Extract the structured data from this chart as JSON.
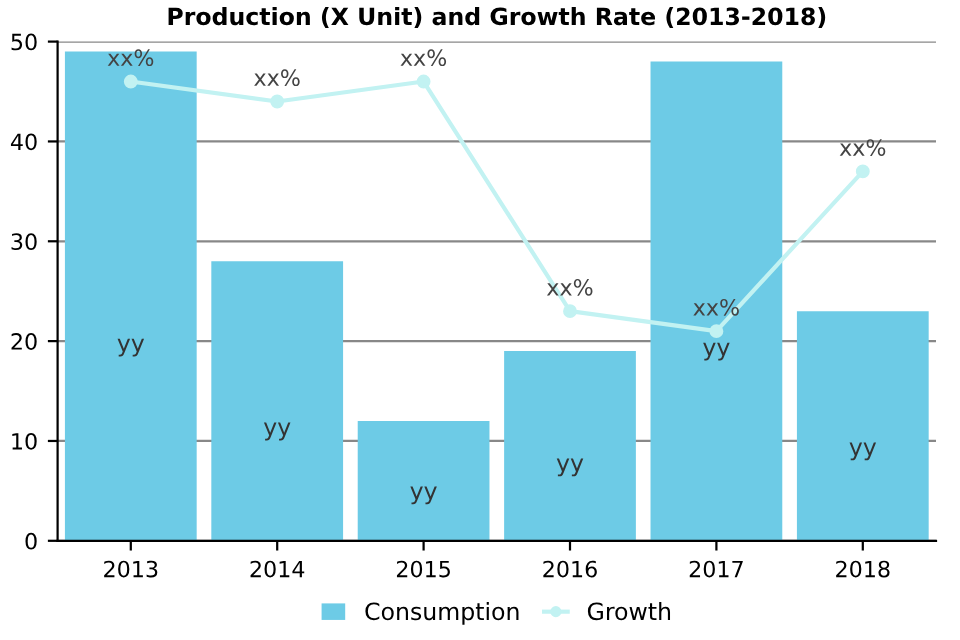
{
  "chart_data": {
    "type": "bar",
    "title": "Production (X Unit) and Growth Rate (2013-2018)",
    "categories": [
      "2013",
      "2014",
      "2015",
      "2016",
      "2017",
      "2018"
    ],
    "series": [
      {
        "name": "Consumption",
        "color": "#6dcbe6",
        "values": [
          49,
          28,
          12,
          19,
          48,
          23
        ],
        "value_labels": [
          "yy",
          "yy",
          "yy",
          "yy",
          "yy",
          "yy"
        ]
      },
      {
        "name": "Growth",
        "type": "line",
        "color": "#c2f2f2",
        "values": [
          46,
          44,
          46,
          23,
          21,
          37
        ],
        "value_labels": [
          "xx%",
          "xx%",
          "xx%",
          "xx%",
          "xx%",
          "xx%"
        ],
        "marker": "circle"
      }
    ],
    "ylim": [
      0,
      50
    ],
    "yticks": [
      0,
      10,
      20,
      30,
      40,
      50
    ],
    "grid": "y",
    "legend": "bottom"
  }
}
